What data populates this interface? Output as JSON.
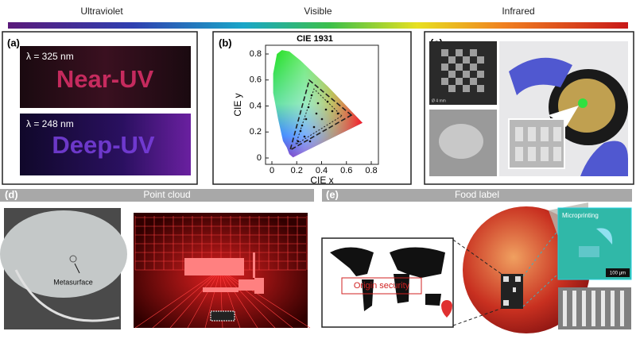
{
  "spectrum": {
    "labels": [
      "Ultraviolet",
      "Visible",
      "Infrared"
    ]
  },
  "panels": {
    "a": {
      "label": "(a)",
      "images": [
        {
          "caption": "λ = 325 nm",
          "text": "Near-UV"
        },
        {
          "caption": "λ = 248 nm",
          "text": "Deep-UV"
        }
      ]
    },
    "b": {
      "label": "(b)",
      "title": "CIE 1931",
      "x_label": "CIE x",
      "y_label": "CIE y",
      "xticks": [
        0,
        0.2,
        0.4,
        0.6,
        0.8
      ],
      "yticks": [
        0,
        0.2,
        0.4,
        0.6,
        0.8
      ]
    },
    "c": {
      "label": "(c)",
      "scale": "Ø 4 mm"
    },
    "d": {
      "label": "(d)",
      "title": "Point cloud",
      "annotation": "Metasurface"
    },
    "e": {
      "label": "(e)",
      "title": "Food label",
      "map_text": "Origin security",
      "inset_title": "Microprinting",
      "scale": "100 μm"
    }
  }
}
